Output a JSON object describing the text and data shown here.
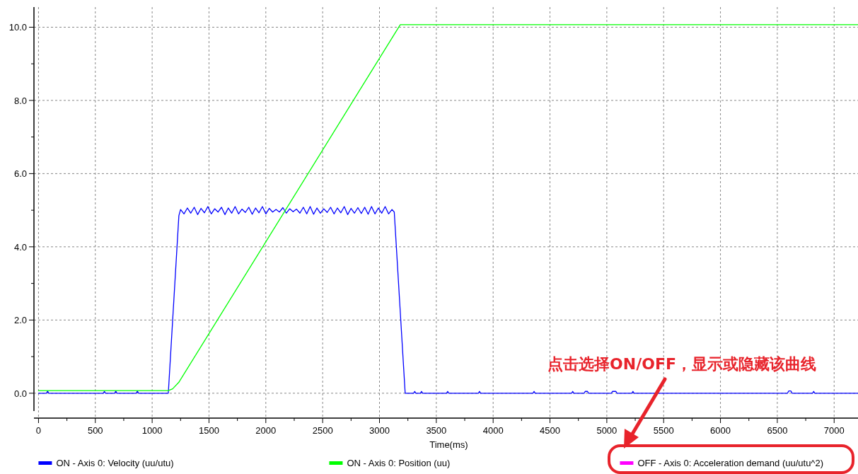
{
  "chart_data": {
    "type": "line",
    "xlabel": "Time(ms)",
    "xlim": [
      -40,
      7210
    ],
    "ylim": [
      -0.68,
      10.55
    ],
    "xticks": [
      0,
      {
        "value": 250,
        "label": null
      },
      500,
      {
        "value": 750,
        "label": null
      },
      1000,
      {
        "value": 1250,
        "label": null
      },
      1500,
      {
        "value": 1750,
        "label": null
      },
      2000,
      {
        "value": 2250,
        "label": null
      },
      2500,
      {
        "value": 2750,
        "label": null
      },
      3000,
      {
        "value": 3250,
        "label": null
      },
      3500,
      {
        "value": 3750,
        "label": null
      },
      4000,
      {
        "value": 4250,
        "label": null
      },
      4500,
      {
        "value": 4750,
        "label": null
      },
      5000,
      {
        "value": 5250,
        "label": null
      },
      5500,
      {
        "value": 5750,
        "label": null
      },
      6000,
      {
        "value": 6250,
        "label": null
      },
      6500,
      {
        "value": 6750,
        "label": null
      },
      7000
    ],
    "yticks": [
      {
        "value": 0,
        "label": "0.0"
      },
      {
        "value": 1,
        "label": null
      },
      {
        "value": 2,
        "label": "2.0"
      },
      {
        "value": 3,
        "label": null
      },
      {
        "value": 4,
        "label": "4.0"
      },
      {
        "value": 5,
        "label": null
      },
      {
        "value": 6,
        "label": "6.0"
      },
      {
        "value": 7,
        "label": null
      },
      {
        "value": 8,
        "label": "8.0"
      },
      {
        "value": 9,
        "label": null
      },
      {
        "value": 10,
        "label": "10.0"
      }
    ],
    "grid": true,
    "legend": "bottom",
    "marker": "none",
    "line_style": "solid",
    "series": [
      {
        "name": "ON  - Axis 0: Velocity (uu/utu)",
        "color": "#0000ff",
        "x": [
          0,
          70,
          80,
          90,
          570,
          580,
          590,
          670,
          680,
          690,
          860,
          870,
          880,
          1142,
          1235,
          1250,
          1280,
          1310,
          1340,
          1370,
          1400,
          1430,
          1460,
          1490,
          1520,
          1550,
          1580,
          1610,
          1640,
          1670,
          1700,
          1730,
          1760,
          1790,
          1820,
          1850,
          1880,
          1910,
          1940,
          1970,
          2000,
          2030,
          2060,
          2090,
          2120,
          2150,
          2180,
          2210,
          2240,
          2270,
          2300,
          2330,
          2360,
          2390,
          2420,
          2450,
          2480,
          2510,
          2540,
          2570,
          2600,
          2630,
          2660,
          2690,
          2720,
          2750,
          2780,
          2810,
          2840,
          2870,
          2900,
          2930,
          2960,
          2990,
          3020,
          3050,
          3080,
          3110,
          3130,
          3226,
          3300,
          3310,
          3320,
          3360,
          3370,
          3380,
          3590,
          3600,
          3610,
          3870,
          3880,
          3890,
          4350,
          4360,
          4370,
          4690,
          4700,
          4710,
          4800,
          4810,
          4830,
          4840,
          5040,
          5050,
          5080,
          5090,
          5220,
          5230,
          5240,
          6590,
          6600,
          6620,
          6630,
          6810,
          6820,
          6830,
          7210
        ],
        "values": [
          0,
          0,
          0.06,
          0,
          0,
          0.05,
          0,
          0,
          0.06,
          0,
          0,
          0.06,
          0,
          0,
          4.85,
          5.02,
          4.9,
          5.06,
          4.92,
          5.08,
          4.88,
          5.05,
          4.93,
          5.1,
          4.9,
          5.04,
          4.95,
          5.08,
          4.88,
          5.06,
          4.92,
          5.1,
          4.9,
          5.03,
          4.94,
          5.08,
          4.89,
          5.06,
          4.93,
          5.1,
          4.9,
          5.05,
          4.95,
          5.02,
          4.95,
          5.07,
          4.92,
          5.04,
          4.96,
          5.03,
          4.92,
          5.08,
          4.9,
          5.1,
          4.89,
          5.06,
          4.92,
          5.04,
          4.94,
          5.08,
          4.9,
          5.06,
          4.93,
          5.1,
          4.88,
          5.05,
          4.92,
          5.07,
          4.91,
          5.08,
          4.89,
          5.1,
          4.9,
          5.06,
          4.92,
          5.1,
          4.9,
          5.02,
          4.95,
          0,
          0,
          0.05,
          0,
          0,
          0.05,
          0,
          0,
          0.05,
          0,
          0,
          0.05,
          0,
          0,
          0.05,
          0,
          0,
          0.05,
          0,
          0,
          0.05,
          0.05,
          0,
          0,
          0.05,
          0.05,
          0,
          0,
          0.05,
          0,
          0,
          0.06,
          0.06,
          0,
          0,
          0.05,
          0,
          0
        ]
      },
      {
        "name": "ON  - Axis 0: Position (uu)",
        "color": "#00ff00",
        "x": [
          0,
          1142,
          1180,
          1235,
          3183,
          7210
        ],
        "values": [
          0.07,
          0.07,
          0.12,
          0.3,
          10.07,
          10.07
        ]
      },
      {
        "name": "OFF - Axis 0: Acceleration demand (uu/utu^2)",
        "color": "#ff00ff"
      }
    ],
    "annotations": [
      "点击选择ON/OFF，显示或隐藏该曲线"
    ]
  }
}
